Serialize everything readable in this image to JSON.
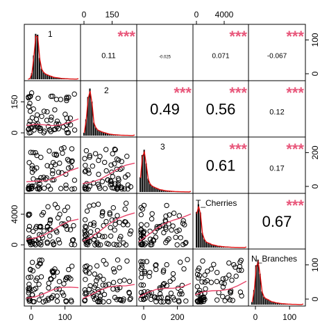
{
  "chart_data": {
    "type": "scatter-matrix",
    "variables": [
      "1",
      "2",
      "3",
      "T_Cherries",
      "N_Branches"
    ],
    "colors": {
      "hist": "#111111",
      "density": "#e01010",
      "smooth": "#e8456a",
      "stars": "#e8567a",
      "points": "#000000"
    },
    "axes": {
      "top": [
        {
          "panel": 1,
          "ticks": [
            0,
            150
          ]
        },
        {
          "panel": 3,
          "ticks": [
            0,
            4000
          ]
        }
      ],
      "bottom": [
        {
          "panel": 0,
          "ticks": [
            0,
            100
          ]
        },
        {
          "panel": 2,
          "ticks": [
            0,
            200
          ]
        },
        {
          "panel": 4,
          "ticks": [
            0,
            100
          ]
        }
      ],
      "left": [
        {
          "panel": 1,
          "ticks": [
            0,
            150
          ]
        },
        {
          "panel": 3,
          "ticks": [
            0,
            4000
          ]
        }
      ],
      "right": [
        {
          "panel": 0,
          "ticks": [
            0,
            100
          ]
        },
        {
          "panel": 2,
          "ticks": [
            0,
            200
          ]
        },
        {
          "panel": 4,
          "ticks": [
            0,
            100
          ]
        }
      ]
    },
    "correlations": [
      {
        "row": 0,
        "col": 1,
        "r": "0.11",
        "stars": "***"
      },
      {
        "row": 0,
        "col": 2,
        "r": "-0.025",
        "stars": ""
      },
      {
        "row": 0,
        "col": 3,
        "r": "0.071",
        "stars": "***"
      },
      {
        "row": 0,
        "col": 4,
        "r": "-0.067",
        "stars": "***"
      },
      {
        "row": 1,
        "col": 2,
        "r": "0.49",
        "stars": "***"
      },
      {
        "row": 1,
        "col": 3,
        "r": "0.56",
        "stars": "***"
      },
      {
        "row": 1,
        "col": 4,
        "r": "0.12",
        "stars": "***"
      },
      {
        "row": 2,
        "col": 3,
        "r": "0.61",
        "stars": "***"
      },
      {
        "row": 2,
        "col": 4,
        "r": "0.17",
        "stars": "***"
      },
      {
        "row": 3,
        "col": 4,
        "r": "0.67",
        "stars": "***"
      }
    ]
  }
}
